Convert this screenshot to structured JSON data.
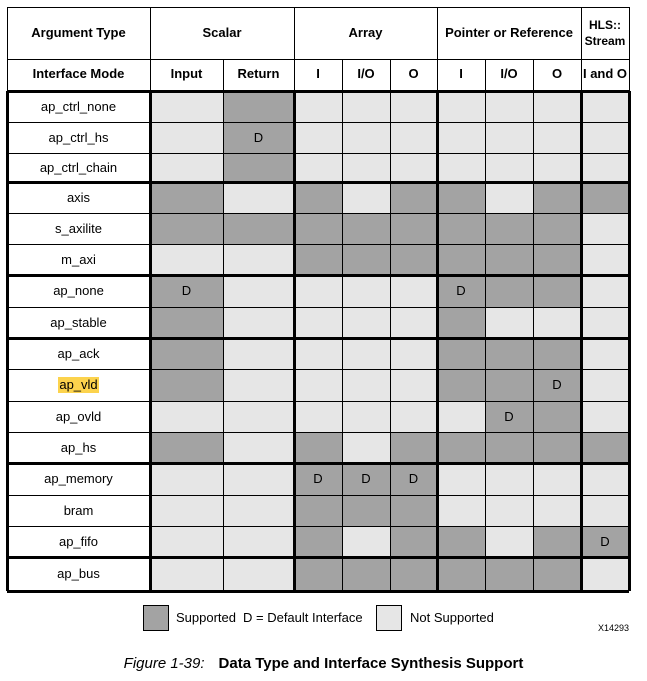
{
  "header": {
    "argument_type": "Argument Type",
    "interface_mode": "Interface Mode",
    "groups": [
      {
        "label": "Scalar",
        "subs": [
          "Input",
          "Return"
        ]
      },
      {
        "label": "Array",
        "subs": [
          "I",
          "I/O",
          "O"
        ]
      },
      {
        "label": "Pointer or Reference",
        "subs": [
          "I",
          "I/O",
          "O"
        ]
      },
      {
        "label": "HLS:: Stream",
        "subs": [
          "I and O"
        ]
      }
    ]
  },
  "rows": [
    {
      "name": "ap_ctrl_none",
      "highlight": false,
      "cells": [
        "N",
        "S",
        "N",
        "N",
        "N",
        "N",
        "N",
        "N",
        "N"
      ]
    },
    {
      "name": "ap_ctrl_hs",
      "highlight": false,
      "cells": [
        "N",
        "D",
        "N",
        "N",
        "N",
        "N",
        "N",
        "N",
        "N"
      ]
    },
    {
      "name": "ap_ctrl_chain",
      "highlight": false,
      "cells": [
        "N",
        "S",
        "N",
        "N",
        "N",
        "N",
        "N",
        "N",
        "N"
      ]
    },
    {
      "name": "axis",
      "highlight": false,
      "cells": [
        "S",
        "N",
        "S",
        "N",
        "S",
        "S",
        "N",
        "S",
        "S"
      ]
    },
    {
      "name": "s_axilite",
      "highlight": false,
      "cells": [
        "S",
        "S",
        "S",
        "S",
        "S",
        "S",
        "S",
        "S",
        "N"
      ]
    },
    {
      "name": "m_axi",
      "highlight": false,
      "cells": [
        "N",
        "N",
        "S",
        "S",
        "S",
        "S",
        "S",
        "S",
        "N"
      ]
    },
    {
      "name": "ap_none",
      "highlight": false,
      "cells": [
        "D",
        "N",
        "N",
        "N",
        "N",
        "D",
        "S",
        "S",
        "N"
      ]
    },
    {
      "name": "ap_stable",
      "highlight": false,
      "cells": [
        "S",
        "N",
        "N",
        "N",
        "N",
        "S",
        "N",
        "N",
        "N"
      ]
    },
    {
      "name": "ap_ack",
      "highlight": false,
      "cells": [
        "S",
        "N",
        "N",
        "N",
        "N",
        "S",
        "S",
        "S",
        "N"
      ]
    },
    {
      "name": "ap_vld",
      "highlight": true,
      "cells": [
        "S",
        "N",
        "N",
        "N",
        "N",
        "S",
        "S",
        "D",
        "N"
      ]
    },
    {
      "name": "ap_ovld",
      "highlight": false,
      "cells": [
        "N",
        "N",
        "N",
        "N",
        "N",
        "N",
        "D",
        "S",
        "N"
      ]
    },
    {
      "name": "ap_hs",
      "highlight": false,
      "cells": [
        "S",
        "N",
        "S",
        "N",
        "S",
        "S",
        "S",
        "S",
        "S"
      ]
    },
    {
      "name": "ap_memory",
      "highlight": false,
      "cells": [
        "N",
        "N",
        "D",
        "D",
        "D",
        "N",
        "N",
        "N",
        "N"
      ]
    },
    {
      "name": "bram",
      "highlight": false,
      "cells": [
        "N",
        "N",
        "S",
        "S",
        "S",
        "N",
        "N",
        "N",
        "N"
      ]
    },
    {
      "name": "ap_fifo",
      "highlight": false,
      "cells": [
        "N",
        "N",
        "S",
        "N",
        "S",
        "S",
        "N",
        "S",
        "D"
      ]
    },
    {
      "name": "ap_bus",
      "highlight": false,
      "cells": [
        "N",
        "N",
        "S",
        "S",
        "S",
        "S",
        "S",
        "S",
        "N"
      ]
    }
  ],
  "default_mark": "D",
  "colors": {
    "supported": "#a3a3a3",
    "not_supported": "#e6e6e6",
    "highlight": "#fcd34d"
  },
  "legend": {
    "supported": "Supported",
    "default": "D = Default Interface",
    "not_supported": "Not Supported"
  },
  "code": "X14293",
  "figure": {
    "number": "Figure 1-39:",
    "title": "Data Type and Interface Synthesis Support"
  }
}
